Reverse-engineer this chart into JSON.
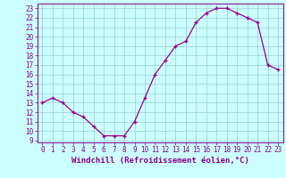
{
  "x": [
    0,
    1,
    2,
    3,
    4,
    5,
    6,
    7,
    8,
    9,
    10,
    11,
    12,
    13,
    14,
    15,
    16,
    17,
    18,
    19,
    20,
    21,
    22,
    23
  ],
  "y": [
    13,
    13.5,
    13,
    12,
    11.5,
    10.5,
    9.5,
    9.5,
    9.5,
    11,
    13.5,
    16,
    17.5,
    19,
    19.5,
    21.5,
    22.5,
    23,
    23,
    22.5,
    22,
    21.5,
    17,
    16.5
  ],
  "line_color": "#990099",
  "marker": "+",
  "bg_color": "#ccffff",
  "grid_color": "#99cccc",
  "xlabel": "Windchill (Refroidissement éolien,°C)",
  "yticks": [
    9,
    10,
    11,
    12,
    13,
    14,
    15,
    16,
    17,
    18,
    19,
    20,
    21,
    22,
    23
  ],
  "xticks": [
    0,
    1,
    2,
    3,
    4,
    5,
    6,
    7,
    8,
    9,
    10,
    11,
    12,
    13,
    14,
    15,
    16,
    17,
    18,
    19,
    20,
    21,
    22,
    23
  ],
  "ylim": [
    8.8,
    23.5
  ],
  "xlim": [
    -0.5,
    23.5
  ],
  "font_color": "#880088",
  "label_fontsize": 6.5,
  "tick_fontsize": 5.5,
  "spine_color": "#880088"
}
